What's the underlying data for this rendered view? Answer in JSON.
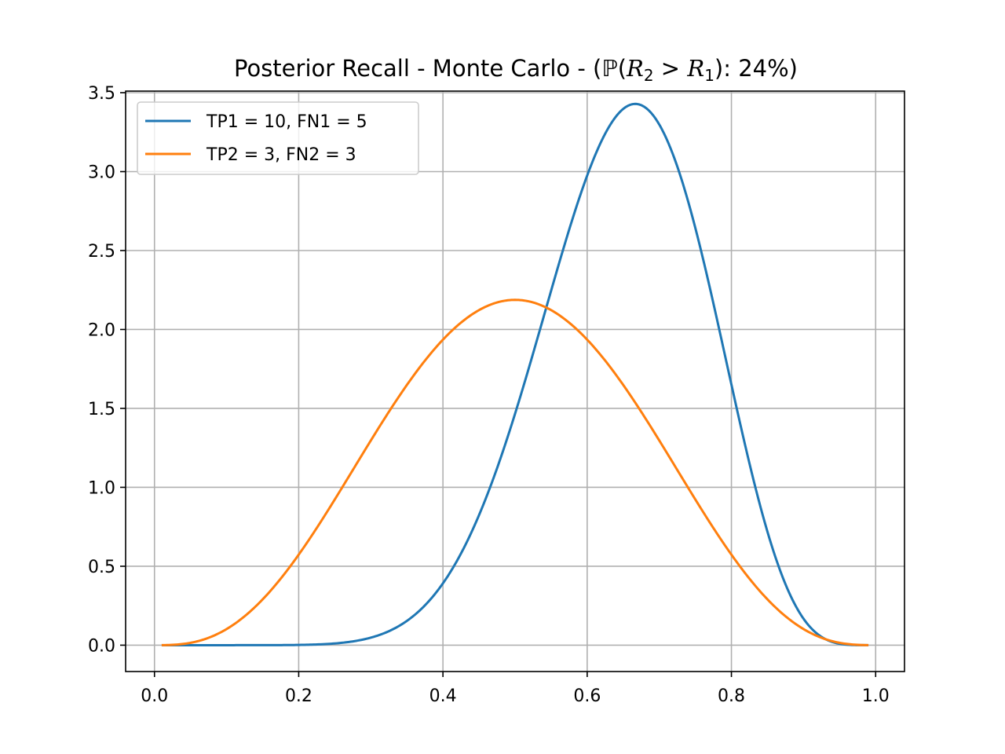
{
  "chart_data": {
    "type": "line",
    "title_parts": {
      "prefix": "Posterior Recall - Monte Carlo - (",
      "prob_symbol": "ℙ",
      "open_paren": "(",
      "var_a": "R",
      "sub_a": "2",
      "gt": " > ",
      "var_b": "R",
      "sub_b": "1",
      "suffix": "): 24%)"
    },
    "xlim": [
      -0.04,
      1.04
    ],
    "ylim": [
      -0.167,
      3.51
    ],
    "x_ticks": [
      0.0,
      0.2,
      0.4,
      0.6,
      0.8,
      1.0
    ],
    "x_tick_labels": [
      "0.0",
      "0.2",
      "0.4",
      "0.6",
      "0.8",
      "1.0"
    ],
    "y_ticks": [
      0.0,
      0.5,
      1.0,
      1.5,
      2.0,
      2.5,
      3.0,
      3.5
    ],
    "y_tick_labels": [
      "0.0",
      "0.5",
      "1.0",
      "1.5",
      "2.0",
      "2.5",
      "3.0",
      "3.5"
    ],
    "grid": true,
    "legend": "upper-left",
    "series": [
      {
        "name": "TP1 = 10, FN1 = 5",
        "color": "#1f77b4",
        "distribution": "beta",
        "alpha": 11,
        "beta": 6,
        "x_range": [
          0.01,
          0.99
        ]
      },
      {
        "name": "TP2 = 3, FN2 = 3",
        "color": "#ff7f0e",
        "distribution": "beta",
        "alpha": 4,
        "beta": 4,
        "x_range": [
          0.01,
          0.99
        ]
      }
    ]
  }
}
